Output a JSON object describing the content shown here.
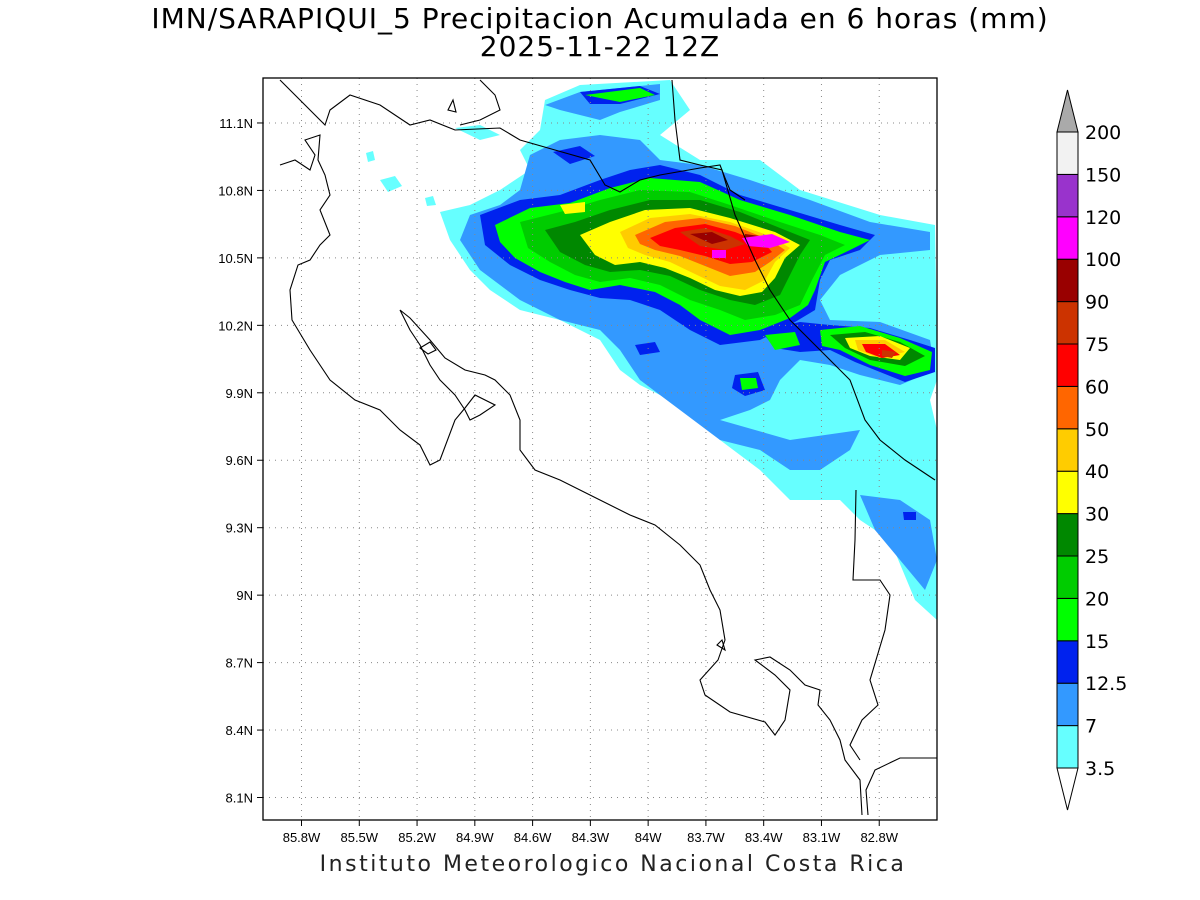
{
  "title": {
    "line1": "IMN/SARAPIQUI_5 Precipitacion Acumulada en 6 horas (mm)",
    "line2": "2025-11-22 12Z"
  },
  "footer": "Instituto Meteorologico Nacional Costa Rica",
  "map": {
    "lon_range": [
      -86.0,
      -82.5
    ],
    "lat_range": [
      8.0,
      11.3
    ],
    "lat_ticks": [
      "11.1N",
      "10.8N",
      "10.5N",
      "10.2N",
      "9.9N",
      "9.6N",
      "9.3N",
      "9N",
      "8.7N",
      "8.4N",
      "8.1N"
    ],
    "lat_values": [
      11.1,
      10.8,
      10.5,
      10.2,
      9.9,
      9.6,
      9.3,
      9.0,
      8.7,
      8.4,
      8.1
    ],
    "lon_ticks": [
      "85.8W",
      "85.5W",
      "85.2W",
      "84.9W",
      "84.6W",
      "84.3W",
      "84W",
      "83.7W",
      "83.4W",
      "83.1W",
      "82.8W"
    ],
    "lon_values": [
      -85.8,
      -85.5,
      -85.2,
      -84.9,
      -84.6,
      -84.3,
      -84.0,
      -83.7,
      -83.4,
      -83.1,
      -82.8
    ],
    "grid": "dotted"
  },
  "colorbar": {
    "levels": [
      "3.5",
      "7",
      "12.5",
      "15",
      "20",
      "25",
      "30",
      "40",
      "50",
      "60",
      "75",
      "90",
      "100",
      "120",
      "150",
      "200"
    ],
    "colors": [
      "#66ffff",
      "#3399ff",
      "#0022ee",
      "#00ff00",
      "#00cc00",
      "#008800",
      "#ffff00",
      "#ffcc00",
      "#ff6600",
      "#ff0000",
      "#cc3300",
      "#990000",
      "#ff00ff",
      "#9933cc",
      "#f2f2f2"
    ],
    "top_arrow_color": "#aaaaaa",
    "bottom_arrow_color": "#ffffff"
  }
}
